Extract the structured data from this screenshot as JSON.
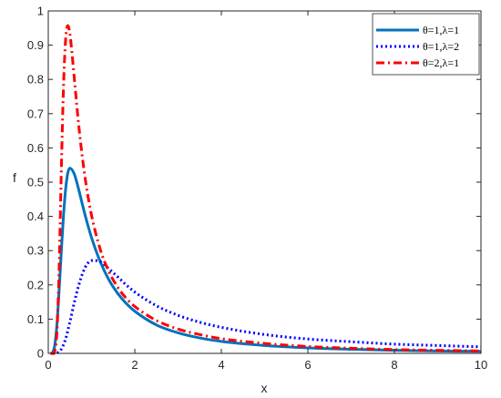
{
  "chart_data": {
    "type": "line",
    "title": "",
    "xlabel": "x",
    "ylabel": "f",
    "xlim": [
      0,
      10
    ],
    "ylim": [
      0,
      1
    ],
    "xticks": [
      0,
      2,
      4,
      6,
      8,
      10
    ],
    "xtick_labels": [
      "0",
      "2",
      "4",
      "6",
      "8",
      "10"
    ],
    "yticks": [
      0,
      0.1,
      0.2,
      0.3,
      0.4,
      0.5,
      0.6,
      0.7,
      0.8,
      0.9,
      1
    ],
    "ytick_labels": [
      "0",
      "0.1",
      "0.2",
      "0.3",
      "0.4",
      "0.5",
      "0.6",
      "0.7",
      "0.8",
      "0.9",
      "1"
    ],
    "grid": false,
    "legend_position": "top-right",
    "series": [
      {
        "name": "θ=1,λ=1",
        "color": "#0072BD",
        "style": "solid",
        "x": [
          0.05,
          0.1,
          0.15,
          0.2,
          0.25,
          0.3,
          0.35,
          0.4,
          0.45,
          0.5,
          0.6,
          0.7,
          0.8,
          0.9,
          1.0,
          1.2,
          1.4,
          1.6,
          1.8,
          2.0,
          2.5,
          3.0,
          3.5,
          4.0,
          5.0,
          6.0,
          7.0,
          8.0,
          9.0,
          10.0
        ],
        "y": [
          0.0,
          0.002,
          0.024,
          0.084,
          0.183,
          0.296,
          0.399,
          0.478,
          0.526,
          0.541,
          0.524,
          0.48,
          0.429,
          0.381,
          0.338,
          0.268,
          0.215,
          0.176,
          0.146,
          0.123,
          0.083,
          0.06,
          0.045,
          0.035,
          0.023,
          0.016,
          0.012,
          0.009,
          0.007,
          0.006
        ]
      },
      {
        "name": "θ=1,λ=2",
        "color": "#0000FF",
        "style": "dotted",
        "x": [
          0.1,
          0.2,
          0.3,
          0.4,
          0.5,
          0.6,
          0.7,
          0.8,
          0.9,
          1.0,
          1.2,
          1.4,
          1.6,
          1.8,
          2.0,
          2.5,
          3.0,
          3.5,
          4.0,
          5.0,
          6.0,
          7.0,
          8.0,
          9.0,
          10.0
        ],
        "y": [
          0.0,
          0.001,
          0.012,
          0.042,
          0.092,
          0.148,
          0.197,
          0.236,
          0.261,
          0.271,
          0.268,
          0.247,
          0.224,
          0.2,
          0.179,
          0.139,
          0.111,
          0.091,
          0.076,
          0.055,
          0.042,
          0.034,
          0.027,
          0.023,
          0.019
        ]
      },
      {
        "name": "θ=2,λ=1",
        "color": "#FF0000",
        "style": "dashdot",
        "x": [
          0.05,
          0.1,
          0.15,
          0.2,
          0.25,
          0.3,
          0.35,
          0.4,
          0.45,
          0.5,
          0.55,
          0.6,
          0.7,
          0.8,
          0.9,
          1.0,
          1.2,
          1.4,
          1.6,
          1.8,
          2.0,
          2.5,
          3.0,
          3.5,
          4.0,
          5.0,
          6.0,
          7.0,
          8.0,
          9.0,
          10.0
        ],
        "y": [
          0.0,
          0.0,
          0.007,
          0.063,
          0.244,
          0.526,
          0.771,
          0.915,
          0.957,
          0.933,
          0.874,
          0.805,
          0.671,
          0.56,
          0.472,
          0.403,
          0.304,
          0.239,
          0.194,
          0.161,
          0.137,
          0.096,
          0.071,
          0.055,
          0.043,
          0.029,
          0.02,
          0.015,
          0.011,
          0.009,
          0.007
        ]
      }
    ]
  }
}
